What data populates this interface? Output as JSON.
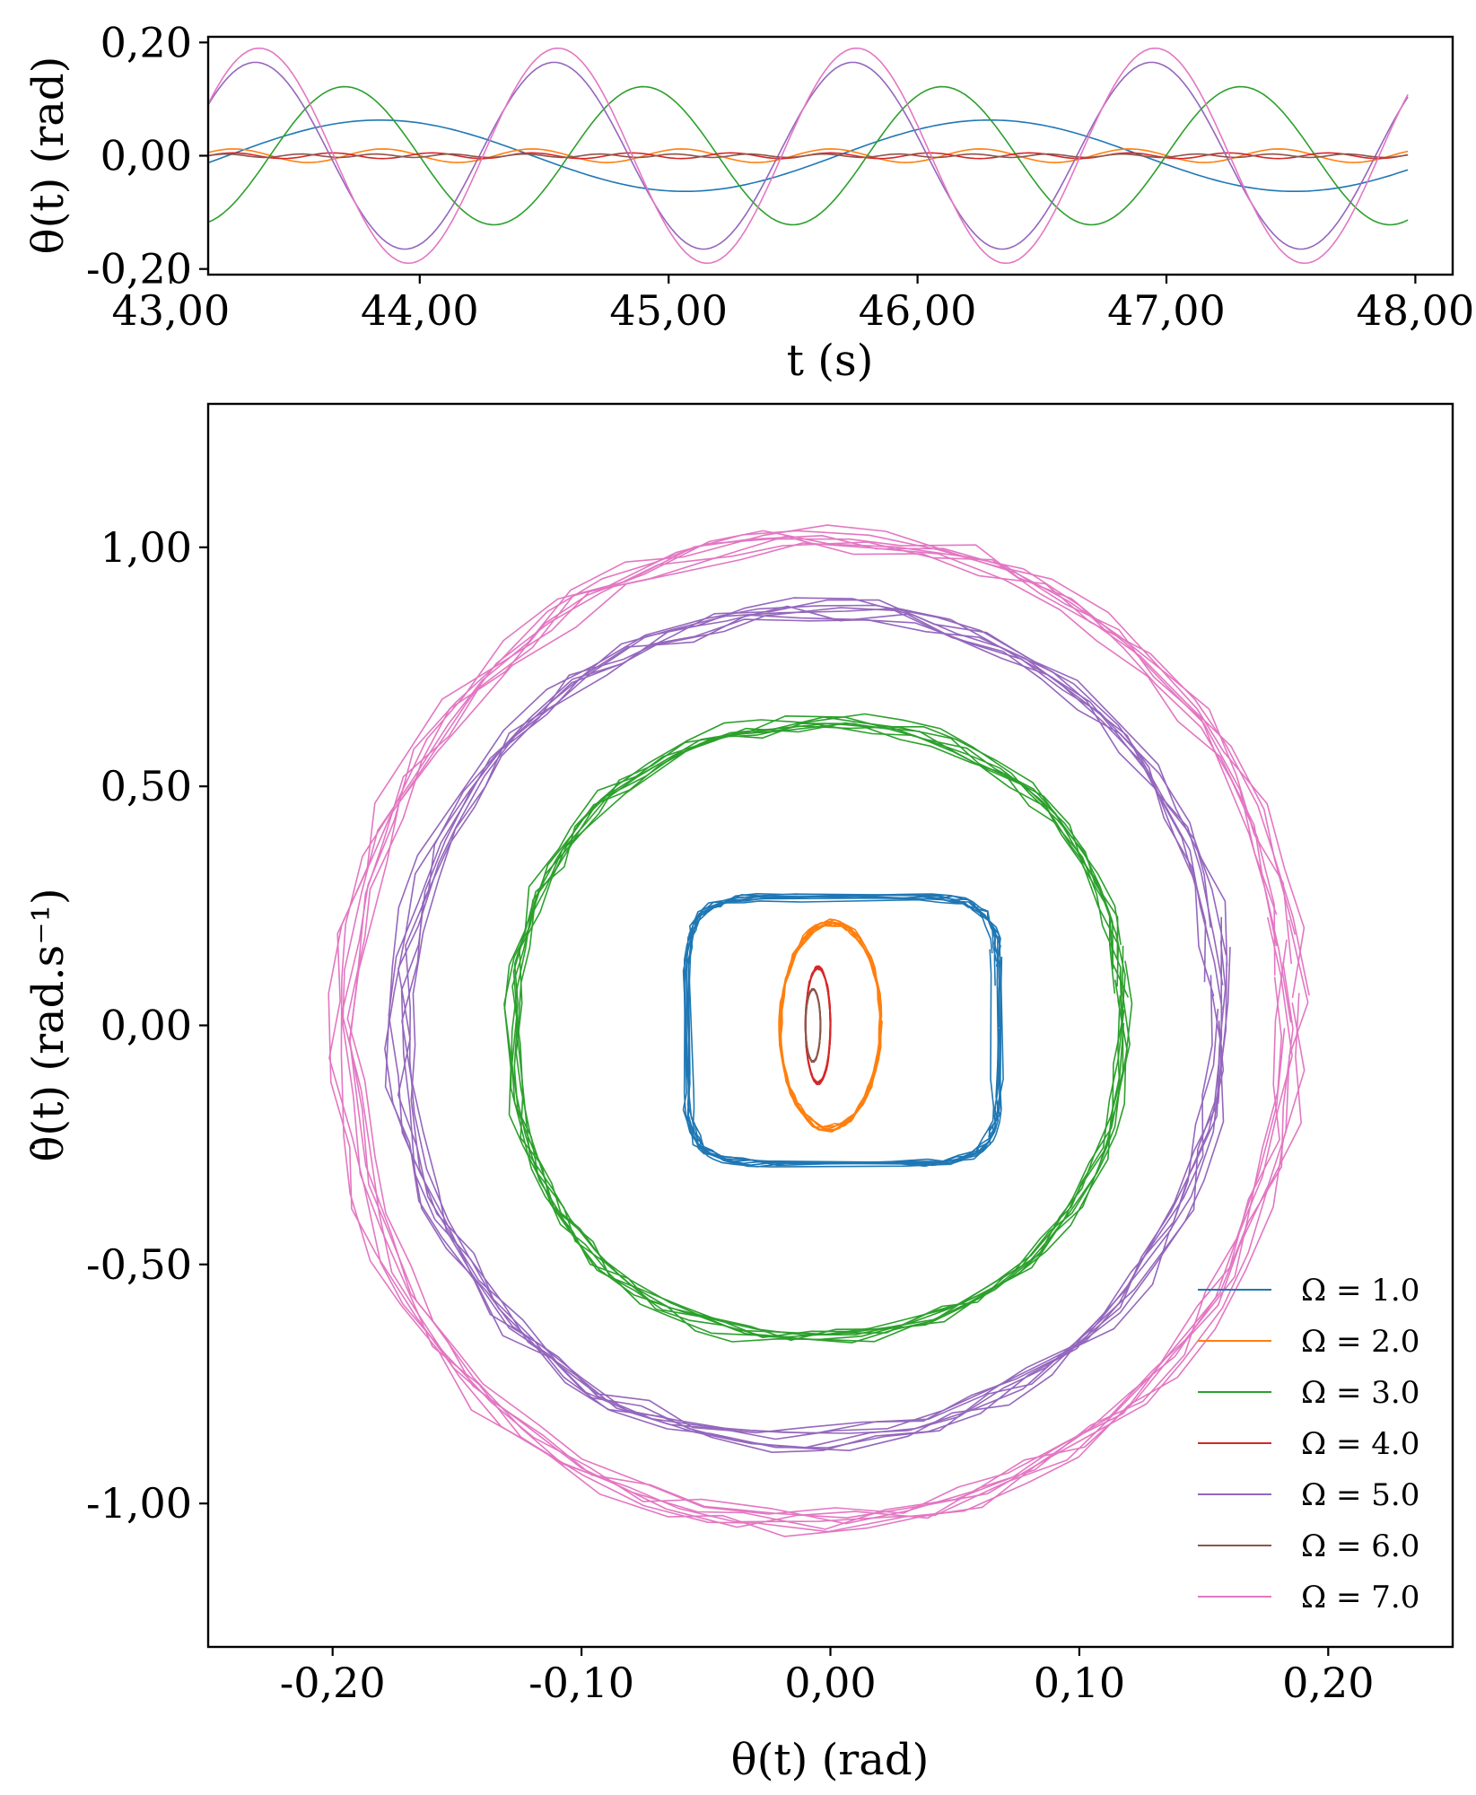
{
  "chart_data": [
    {
      "type": "line",
      "xlabel": "t (s)",
      "ylabel": "θ(t) (rad)",
      "xlim": [
        43.15,
        48.15
      ],
      "ylim": [
        -0.21,
        0.21
      ],
      "xticks": [
        "43,00",
        "44,00",
        "45,00",
        "46,00",
        "47,00",
        "48,00"
      ],
      "xtick_values": [
        43,
        44,
        45,
        46,
        47,
        48
      ],
      "yticks": [
        "0,20",
        "0,00",
        "-0,20"
      ],
      "ytick_values": [
        0.2,
        0.0,
        -0.2
      ],
      "t_range": [
        43.15,
        47.97
      ],
      "grid": false,
      "series": [
        {
          "name": "Ω = 1.0",
          "color": "#1f77b4",
          "amplitude": 0.063,
          "omega": 1.0,
          "phase_t0": 43.15,
          "phase0": -0.2
        },
        {
          "name": "Ω = 2.0",
          "color": "#ff7f0e",
          "amplitude": 0.012,
          "omega": 2.0,
          "phase_t0": 43.15,
          "phase0": 0.5
        },
        {
          "name": "Ω = 3.0",
          "color": "#2ca02c",
          "amplitude": 0.122,
          "omega": 3.0,
          "phase_t0": 43.15,
          "phase0": -1.3
        },
        {
          "name": "Ω = 4.0",
          "color": "#d62728",
          "amplitude": 0.005,
          "omega": 4.0,
          "phase_t0": 43.15,
          "phase0": 0.0
        },
        {
          "name": "Ω = 5.0",
          "color": "#9467bd",
          "amplitude": 0.165,
          "omega": 5.0,
          "phase_t0": 43.15,
          "phase0": 1.1
        },
        {
          "name": "Ω = 6.0",
          "color": "#8c564b",
          "amplitude": 0.003,
          "omega": 6.0,
          "phase_t0": 43.15,
          "phase0": 0.0
        },
        {
          "name": "Ω = 7.0",
          "color": "#e377c2",
          "amplitude": 0.19,
          "omega": 7.0,
          "phase_t0": 43.15,
          "phase0": 0.5
        }
      ]
    },
    {
      "type": "line",
      "xlabel": "θ(t) (rad)",
      "ylabel": "θ̇(t) (rad.s⁻¹)",
      "xlim": [
        -0.25,
        0.25
      ],
      "ylim": [
        -1.3,
        1.3
      ],
      "xticks": [
        "-0,20",
        "-0,10",
        "0,00",
        "0,10",
        "0,20"
      ],
      "xtick_values": [
        -0.2,
        -0.1,
        0.0,
        0.1,
        0.2
      ],
      "yticks": [
        "1,00",
        "0,50",
        "0,00",
        "-0,50",
        "-1,00"
      ],
      "ytick_values": [
        1.0,
        0.5,
        0.0,
        -0.5,
        -1.0
      ],
      "legend_position": "lower-right",
      "grid": false,
      "series": [
        {
          "name": "Ω = 1.0",
          "color": "#1f77b4",
          "center": [
            0.005,
            -0.01
          ],
          "x_amp": 0.062,
          "y_amp": 0.28,
          "shape_power": 6,
          "tilt": 0.0
        },
        {
          "name": "Ω = 2.0",
          "color": "#ff7f0e",
          "center": [
            0.0,
            0.0
          ],
          "x_amp": 0.02,
          "y_amp": 0.215,
          "shape_power": 2,
          "tilt": 0.3
        },
        {
          "name": "Ω = 3.0",
          "color": "#2ca02c",
          "center": [
            -0.005,
            -0.01
          ],
          "x_amp": 0.122,
          "y_amp": 0.645,
          "shape_power": 2.2,
          "tilt": 0.15
        },
        {
          "name": "Ω = 4.0",
          "color": "#d62728",
          "center": [
            -0.005,
            0.0
          ],
          "x_amp": 0.005,
          "y_amp": 0.12,
          "shape_power": 2,
          "tilt": 0.0
        },
        {
          "name": "Ω = 5.0",
          "color": "#9467bd",
          "center": [
            -0.008,
            0.0
          ],
          "x_amp": 0.165,
          "y_amp": 0.875,
          "shape_power": 2.1,
          "tilt": 0.2
        },
        {
          "name": "Ω = 6.0",
          "color": "#8c564b",
          "center": [
            -0.007,
            0.0
          ],
          "x_amp": 0.003,
          "y_amp": 0.075,
          "shape_power": 2,
          "tilt": 0.0
        },
        {
          "name": "Ω = 7.0",
          "color": "#e377c2",
          "center": [
            -0.005,
            -0.01
          ],
          "x_amp": 0.19,
          "y_amp": 1.03,
          "shape_power": 2.1,
          "tilt": 0.18
        }
      ]
    }
  ]
}
